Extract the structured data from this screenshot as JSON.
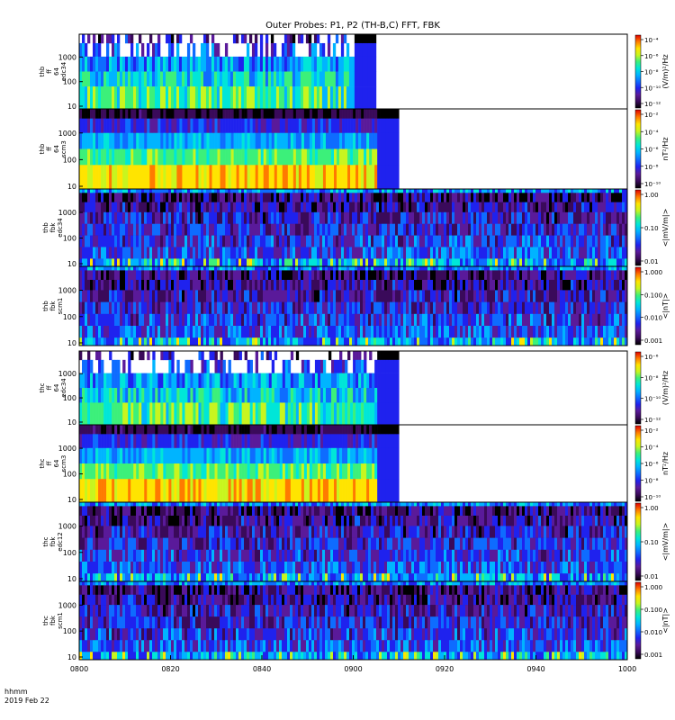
{
  "title": "Outer Probes: P1, P2 (TH-B,C) FFT, FBK",
  "time_axis": {
    "label_unit": "hhmm",
    "date": "2019 Feb 22",
    "ticks": [
      "0800",
      "0820",
      "0840",
      "0900",
      "0920",
      "0940",
      "1000"
    ],
    "range_minutes": [
      0,
      120
    ]
  },
  "colormap": [
    "#000000",
    "#3a0a5a",
    "#5a1a9a",
    "#1f22ee",
    "#0e6cff",
    "#00b4ff",
    "#00e6d8",
    "#3cf07a",
    "#c8f51e",
    "#ffe400",
    "#ff7a00",
    "#e00000"
  ],
  "chart_data": [
    {
      "type": "heatmap",
      "panel_label": [
        "thb",
        "ff",
        "64",
        "edc34"
      ],
      "y_tick_labels": [
        "10",
        "100",
        "1000"
      ],
      "colorbar_tick_labels": [
        "10⁻⁴",
        "10⁻⁶",
        "10⁻⁸",
        "10⁻¹⁰",
        "10⁻¹²"
      ],
      "colorbar_label": "(V/m)²/Hz",
      "data_end_minute": 65
    },
    {
      "type": "heatmap",
      "panel_label": [
        "thb",
        "ff",
        "64",
        "scm3"
      ],
      "y_tick_labels": [
        "10",
        "100",
        "1000"
      ],
      "colorbar_tick_labels": [
        "10⁻²",
        "10⁻⁴",
        "10⁻⁶",
        "10⁻⁸",
        "10⁻¹⁰"
      ],
      "colorbar_label": "nT²/Hz",
      "data_end_minute": 70
    },
    {
      "type": "heatmap",
      "panel_label": [
        "thb",
        "fbk",
        "edc34"
      ],
      "y_tick_labels": [
        "10",
        "100",
        "1000"
      ],
      "colorbar_tick_labels": [
        "1.00",
        "0.10",
        "0.01"
      ],
      "colorbar_label": "<|mV/m|>",
      "data_end_minute": 120
    },
    {
      "type": "heatmap",
      "panel_label": [
        "thb",
        "fbk",
        "scm1"
      ],
      "y_tick_labels": [
        "10",
        "100",
        "1000"
      ],
      "colorbar_tick_labels": [
        "1.000",
        "0.100",
        "0.010",
        "0.001"
      ],
      "colorbar_label": "<|nT|>",
      "data_end_minute": 120
    },
    {
      "type": "heatmap",
      "panel_label": [
        "thc",
        "ff",
        "64",
        "edc34"
      ],
      "y_tick_labels": [
        "10",
        "100",
        "1000"
      ],
      "colorbar_tick_labels": [
        "10⁻⁶",
        "10⁻⁸",
        "10⁻¹⁰",
        "10⁻¹²"
      ],
      "colorbar_label": "(V/m)²/Hz",
      "data_end_minute": 70
    },
    {
      "type": "heatmap",
      "panel_label": [
        "thc",
        "ff",
        "64",
        "scm3"
      ],
      "y_tick_labels": [
        "10",
        "100",
        "1000"
      ],
      "colorbar_tick_labels": [
        "10⁻²",
        "10⁻⁴",
        "10⁻⁶",
        "10⁻⁸",
        "10⁻¹⁰"
      ],
      "colorbar_label": "nT²/Hz",
      "data_end_minute": 70
    },
    {
      "type": "heatmap",
      "panel_label": [
        "thc",
        "fbk",
        "edc12"
      ],
      "y_tick_labels": [
        "10",
        "100",
        "1000"
      ],
      "colorbar_tick_labels": [
        "1.00",
        "0.10",
        "0.01"
      ],
      "colorbar_label": "<|mV/m|>",
      "data_end_minute": 120
    },
    {
      "type": "heatmap",
      "panel_label": [
        "thc",
        "fbk",
        "scm1"
      ],
      "y_tick_labels": [
        "10",
        "100",
        "1000"
      ],
      "colorbar_tick_labels": [
        "1.000",
        "0.100",
        "0.010",
        "0.001"
      ],
      "colorbar_label": "<|nT|>",
      "data_end_minute": 120
    }
  ]
}
